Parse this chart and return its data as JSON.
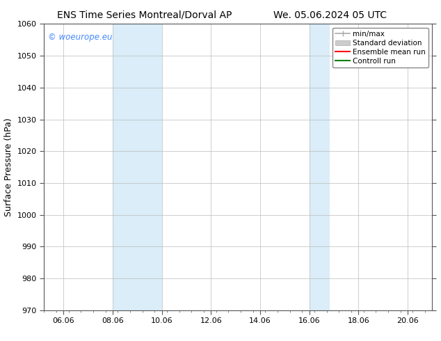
{
  "title_left": "ENS Time Series Montreal/Dorval AP",
  "title_right": "We. 05.06.2024 05 UTC",
  "ylabel": "Surface Pressure (hPa)",
  "ylim": [
    970,
    1060
  ],
  "yticks": [
    970,
    980,
    990,
    1000,
    1010,
    1020,
    1030,
    1040,
    1050,
    1060
  ],
  "x_origin_date": "2024-06-05",
  "x_origin_hour": 5,
  "xlim_days": [
    0.0,
    15.79
  ],
  "xtick_labels": [
    "06.06",
    "08.06",
    "10.06",
    "12.06",
    "14.06",
    "16.06",
    "18.06",
    "20.06"
  ],
  "xtick_positions_days": [
    0.79,
    2.79,
    4.79,
    6.79,
    8.79,
    10.79,
    12.79,
    14.79
  ],
  "shaded_regions": [
    {
      "xstart_day": 2.79,
      "xend_day": 4.79,
      "color": "#daedf8"
    },
    {
      "xstart_day": 10.79,
      "xend_day": 11.62,
      "color": "#daedf8"
    }
  ],
  "watermark": "© woeurope.eu",
  "watermark_color": "#4488ff",
  "background_color": "#ffffff",
  "grid_color": "#bbbbbb",
  "border_color": "#555555",
  "title_fontsize": 10,
  "tick_fontsize": 8,
  "ylabel_fontsize": 9
}
